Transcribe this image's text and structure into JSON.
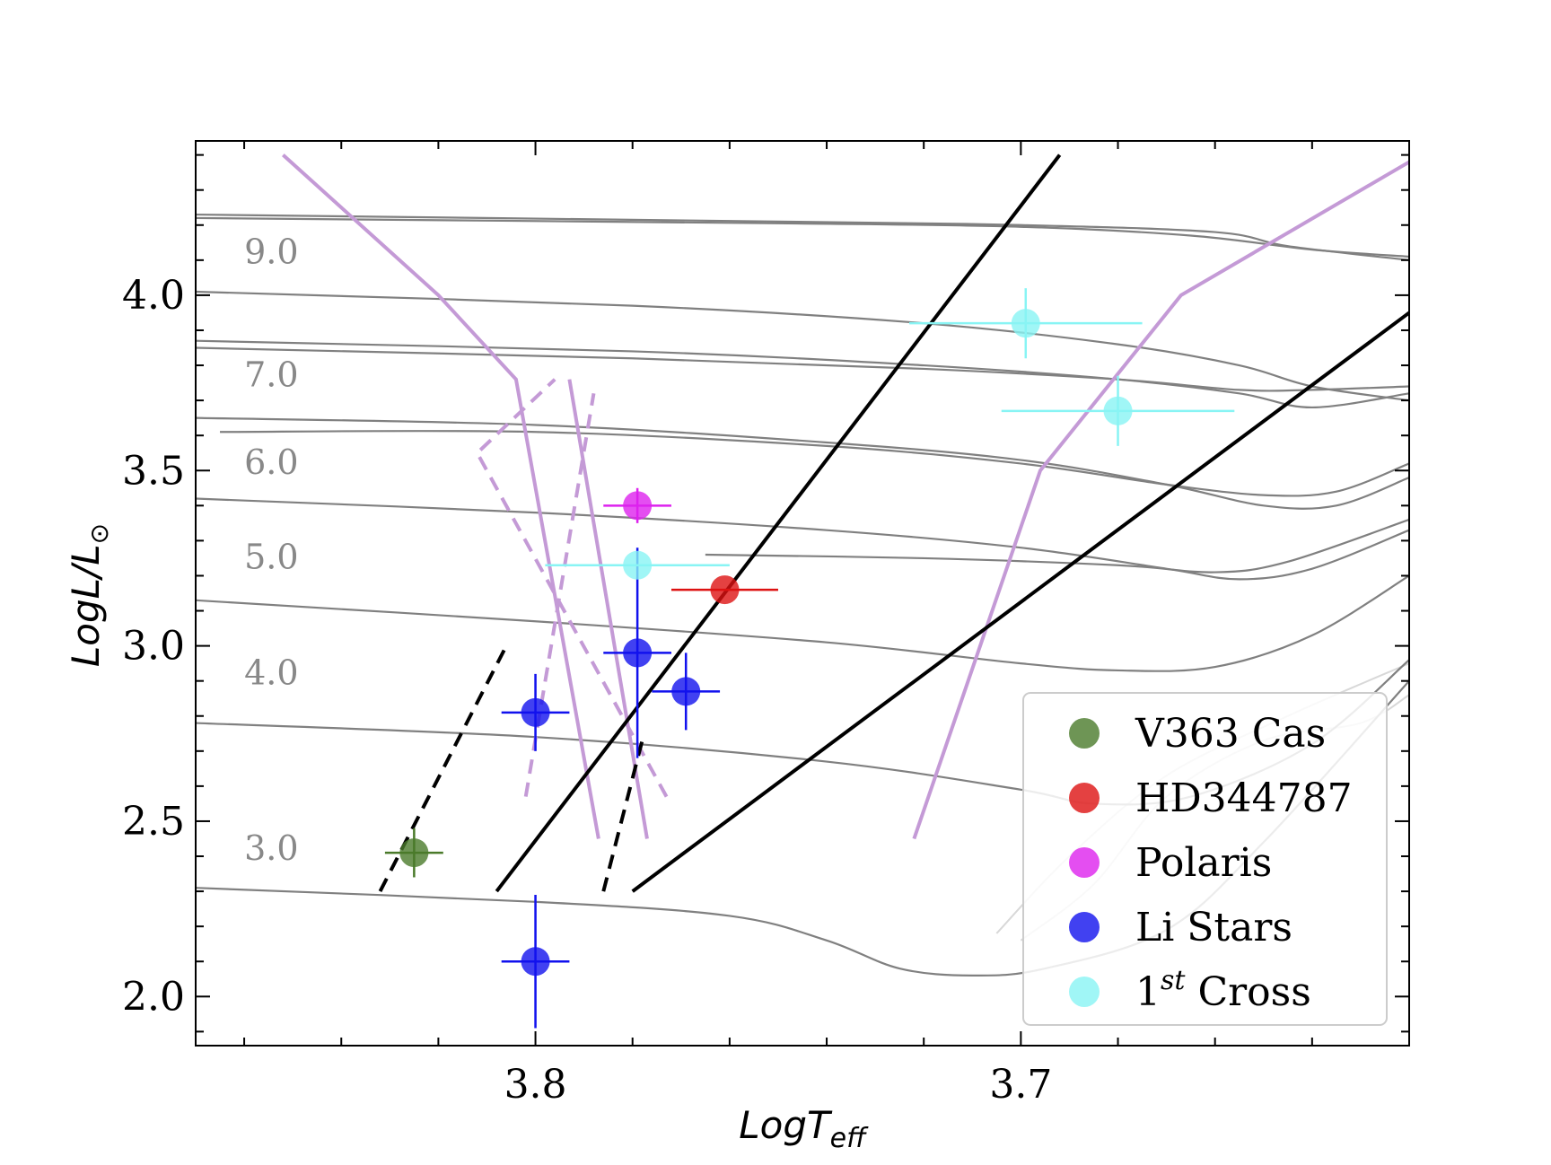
{
  "chart_data": {
    "type": "scatter",
    "xlabel_main": "LogT",
    "xlabel_sub": "eff",
    "ylabel_main": "LogL/L",
    "ylabel_sub": "⊙",
    "xlim": [
      3.87,
      3.62
    ],
    "ylim": [
      1.86,
      4.44
    ],
    "x_ticks": [
      3.8,
      3.7
    ],
    "x_tick_labels": [
      "3.8",
      "3.7"
    ],
    "y_ticks": [
      2.0,
      2.5,
      3.0,
      3.5,
      4.0
    ],
    "y_tick_labels": [
      "2.0",
      "2.5",
      "3.0",
      "3.5",
      "4.0"
    ],
    "x_minor_step": 0.02,
    "y_minor_step": 0.1,
    "grid": false,
    "legend_position": "lower-right",
    "colors": {
      "track": "#808080",
      "track_light": "#d8d8d8",
      "strip": "#c49ad6",
      "black_strip": "#000000",
      "mass_label": "#888888"
    },
    "mass_labels": [
      {
        "text": "9.0",
        "x": 3.86,
        "y": 4.09
      },
      {
        "text": "7.0",
        "x": 3.86,
        "y": 3.74
      },
      {
        "text": "6.0",
        "x": 3.86,
        "y": 3.49
      },
      {
        "text": "5.0",
        "x": 3.86,
        "y": 3.22
      },
      {
        "text": "4.0",
        "x": 3.86,
        "y": 2.89
      },
      {
        "text": "3.0",
        "x": 3.86,
        "y": 2.39
      }
    ],
    "tracks": [
      {
        "points": [
          [
            3.87,
            4.23
          ],
          [
            3.75,
            4.21
          ],
          [
            3.7,
            4.2
          ],
          [
            3.66,
            4.18
          ],
          [
            3.645,
            4.14
          ],
          [
            3.62,
            4.1
          ]
        ]
      },
      {
        "points": [
          [
            3.87,
            4.22
          ],
          [
            3.75,
            4.205
          ],
          [
            3.7,
            4.195
          ],
          [
            3.665,
            4.17
          ],
          [
            3.64,
            4.13
          ],
          [
            3.62,
            4.11
          ]
        ]
      },
      {
        "points": [
          [
            3.87,
            4.01
          ],
          [
            3.78,
            3.97
          ],
          [
            3.72,
            3.92
          ],
          [
            3.68,
            3.86
          ],
          [
            3.655,
            3.8
          ],
          [
            3.64,
            3.74
          ],
          [
            3.62,
            3.7
          ]
        ]
      },
      {
        "points": [
          [
            3.87,
            3.87
          ],
          [
            3.78,
            3.84
          ],
          [
            3.72,
            3.8
          ],
          [
            3.68,
            3.76
          ],
          [
            3.655,
            3.72
          ],
          [
            3.64,
            3.68
          ],
          [
            3.62,
            3.72
          ]
        ]
      },
      {
        "points": [
          [
            3.87,
            3.85
          ],
          [
            3.78,
            3.82
          ],
          [
            3.72,
            3.79
          ],
          [
            3.68,
            3.76
          ],
          [
            3.655,
            3.73
          ],
          [
            3.64,
            3.73
          ],
          [
            3.62,
            3.74
          ]
        ]
      },
      {
        "points": [
          [
            3.87,
            3.65
          ],
          [
            3.8,
            3.63
          ],
          [
            3.74,
            3.58
          ],
          [
            3.7,
            3.53
          ],
          [
            3.67,
            3.46
          ],
          [
            3.65,
            3.4
          ],
          [
            3.635,
            3.4
          ],
          [
            3.62,
            3.48
          ]
        ]
      },
      {
        "points": [
          [
            3.865,
            3.61
          ],
          [
            3.8,
            3.61
          ],
          [
            3.74,
            3.57
          ],
          [
            3.7,
            3.52
          ],
          [
            3.67,
            3.46
          ],
          [
            3.65,
            3.43
          ],
          [
            3.635,
            3.44
          ],
          [
            3.62,
            3.52
          ]
        ]
      },
      {
        "points": [
          [
            3.87,
            3.42
          ],
          [
            3.8,
            3.38
          ],
          [
            3.74,
            3.33
          ],
          [
            3.7,
            3.28
          ],
          [
            3.67,
            3.22
          ],
          [
            3.655,
            3.19
          ],
          [
            3.64,
            3.22
          ],
          [
            3.62,
            3.33
          ]
        ]
      },
      {
        "points": [
          [
            3.765,
            3.26
          ],
          [
            3.72,
            3.25
          ],
          [
            3.68,
            3.23
          ],
          [
            3.66,
            3.21
          ],
          [
            3.645,
            3.24
          ],
          [
            3.62,
            3.36
          ]
        ]
      },
      {
        "points": [
          [
            3.87,
            3.13
          ],
          [
            3.8,
            3.07
          ],
          [
            3.74,
            3.01
          ],
          [
            3.7,
            2.95
          ],
          [
            3.68,
            2.93
          ],
          [
            3.66,
            2.94
          ],
          [
            3.64,
            3.03
          ],
          [
            3.62,
            3.2
          ]
        ]
      },
      {
        "points": [
          [
            3.87,
            2.78
          ],
          [
            3.8,
            2.74
          ],
          [
            3.74,
            2.67
          ],
          [
            3.7,
            2.59
          ],
          [
            3.685,
            2.55
          ],
          [
            3.665,
            2.57
          ],
          [
            3.64,
            2.72
          ],
          [
            3.62,
            2.96
          ]
        ]
      },
      {
        "points": [
          [
            3.87,
            2.31
          ],
          [
            3.8,
            2.27
          ],
          [
            3.76,
            2.23
          ],
          [
            3.74,
            2.16
          ],
          [
            3.725,
            2.08
          ],
          [
            3.71,
            2.06
          ],
          [
            3.695,
            2.08
          ],
          [
            3.67,
            2.19
          ],
          [
            3.65,
            2.44
          ],
          [
            3.62,
            2.9
          ]
        ]
      }
    ],
    "light_tracks": [
      {
        "points": [
          [
            3.7,
            2.16
          ],
          [
            3.685,
            2.32
          ],
          [
            3.67,
            2.57
          ],
          [
            3.65,
            2.73
          ],
          [
            3.63,
            2.78
          ],
          [
            3.62,
            2.86
          ]
        ]
      },
      {
        "points": [
          [
            3.705,
            2.18
          ],
          [
            3.69,
            2.4
          ],
          [
            3.67,
            2.63
          ],
          [
            3.645,
            2.8
          ],
          [
            3.62,
            2.95
          ]
        ]
      }
    ],
    "purple_solid": [
      {
        "points": [
          [
            3.787,
            2.45
          ],
          [
            3.804,
            3.76
          ],
          [
            3.82,
            4.0
          ],
          [
            3.852,
            4.4
          ]
        ]
      },
      {
        "points": [
          [
            3.777,
            2.45
          ],
          [
            3.793,
            3.76
          ]
        ]
      },
      {
        "points": [
          [
            3.722,
            2.45
          ],
          [
            3.696,
            3.5
          ],
          [
            3.667,
            4.0
          ],
          [
            3.62,
            4.38
          ]
        ]
      }
    ],
    "purple_dashed": [
      {
        "points": [
          [
            3.773,
            2.57
          ],
          [
            3.812,
            3.55
          ],
          [
            3.796,
            3.76
          ]
        ]
      },
      {
        "points": [
          [
            3.802,
            2.57
          ],
          [
            3.788,
            3.72
          ]
        ]
      }
    ],
    "black_solid": [
      {
        "points": [
          [
            3.808,
            2.3
          ],
          [
            3.692,
            4.4
          ]
        ]
      },
      {
        "points": [
          [
            3.78,
            2.3
          ],
          [
            3.62,
            3.95
          ]
        ]
      }
    ],
    "black_dashed": [
      {
        "points": [
          [
            3.832,
            2.3
          ],
          [
            3.806,
            3.0
          ]
        ]
      },
      {
        "points": [
          [
            3.786,
            2.3
          ],
          [
            3.778,
            2.73
          ]
        ]
      }
    ],
    "series": [
      {
        "name": "V363 Cas",
        "color": "#4a7a2a",
        "points": [
          {
            "x": 3.825,
            "y": 2.41,
            "xerr": 0.006,
            "yerr": 0.07
          }
        ]
      },
      {
        "name": "HD344787",
        "color": "#dd1111",
        "points": [
          {
            "x": 3.761,
            "y": 3.16,
            "xerr": 0.011,
            "yerr": 0.0
          }
        ]
      },
      {
        "name": "Polaris",
        "color": "#dd22ee",
        "points": [
          {
            "x": 3.779,
            "y": 3.4,
            "xerr": 0.007,
            "yerr": 0.05
          }
        ]
      },
      {
        "name": "Li Stars",
        "color": "#1111ee",
        "points": [
          {
            "x": 3.8,
            "y": 2.1,
            "xerr": 0.007,
            "yerr": 0.19
          },
          {
            "x": 3.8,
            "y": 2.81,
            "xerr": 0.007,
            "yerr": 0.11
          },
          {
            "x": 3.779,
            "y": 2.98,
            "xerr": 0.007,
            "yerr": 0.3
          },
          {
            "x": 3.769,
            "y": 2.87,
            "xerr": 0.007,
            "yerr": 0.11
          }
        ]
      },
      {
        "name": "1st Cross",
        "legend_main": "1",
        "legend_sup": "st",
        "legend_rest": " Cross",
        "color": "#88f4f4",
        "points": [
          {
            "x": 3.779,
            "y": 3.23,
            "xerr": 0.019,
            "yerr": 0.0
          },
          {
            "x": 3.68,
            "y": 3.67,
            "xerr": 0.024,
            "yerr": 0.1
          },
          {
            "x": 3.699,
            "y": 3.92,
            "xerr": 0.024,
            "yerr": 0.1
          }
        ]
      }
    ]
  }
}
